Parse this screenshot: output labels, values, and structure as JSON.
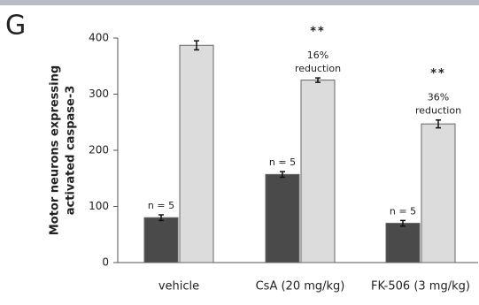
{
  "chart_data": {
    "type": "bar",
    "panel_label": "G",
    "ylabel": [
      "Motor neurons expressing",
      "activated caspase-3"
    ],
    "categories": [
      "vehicle",
      "CsA (20 mg/kg)",
      "FK-506 (3 mg/kg)"
    ],
    "series": [
      {
        "color": "#4a4a4a",
        "values": [
          80,
          157,
          70
        ],
        "errors": [
          5,
          5,
          5
        ],
        "notes": [
          "n = 5",
          "n = 5",
          "n = 5"
        ]
      },
      {
        "color": "#dcdcdc",
        "values": [
          387,
          325,
          247
        ],
        "errors": [
          8,
          4,
          7
        ],
        "notes": [
          null,
          [
            "**",
            "16%",
            "reduction"
          ],
          [
            "**",
            "36%",
            "reduction"
          ]
        ]
      }
    ],
    "ylim": [
      0,
      400
    ],
    "yticks": [
      0,
      100,
      200,
      300,
      400
    ],
    "grid": false
  }
}
